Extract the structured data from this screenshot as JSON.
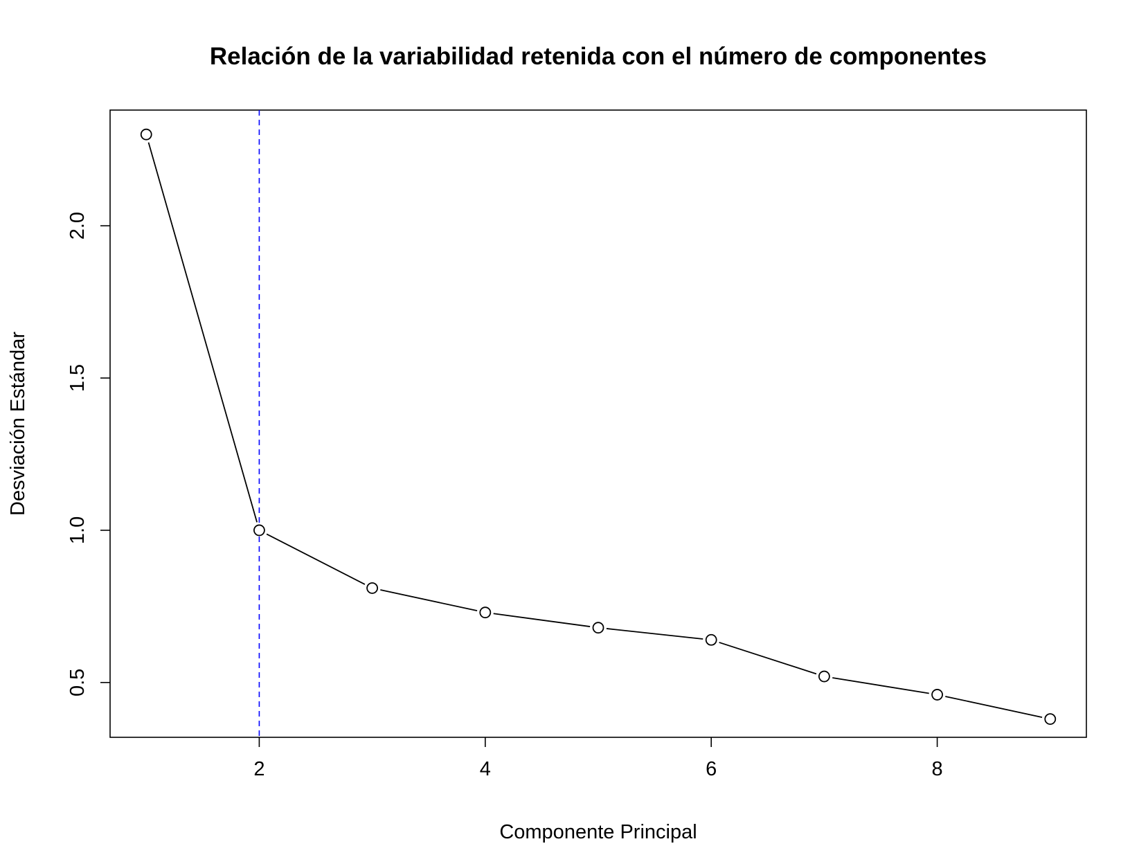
{
  "chart_data": {
    "type": "line",
    "title": "Relación de la variabilidad retenida con el número de componentes",
    "xlabel": "Componente Principal",
    "ylabel": "Desviación Estándar",
    "x": [
      1,
      2,
      3,
      4,
      5,
      6,
      7,
      8,
      9
    ],
    "series": [
      {
        "values": [
          2.3,
          1.0,
          0.81,
          0.73,
          0.68,
          0.64,
          0.52,
          0.46,
          0.38
        ]
      }
    ],
    "xlim": [
      0.68,
      9.32
    ],
    "ylim": [
      0.32,
      2.38
    ],
    "xticks": [
      2,
      4,
      6,
      8
    ],
    "yticks": [
      0.5,
      1.0,
      1.5,
      2.0
    ],
    "xtick_labels": [
      "2",
      "4",
      "6",
      "8"
    ],
    "ytick_labels": [
      "0.5",
      "1.0",
      "1.5",
      "2.0"
    ],
    "vline": {
      "x": 2,
      "color": "#0000ff",
      "style": "dashed"
    },
    "line_color": "#000000",
    "marker": "open-circle",
    "grid": false
  }
}
